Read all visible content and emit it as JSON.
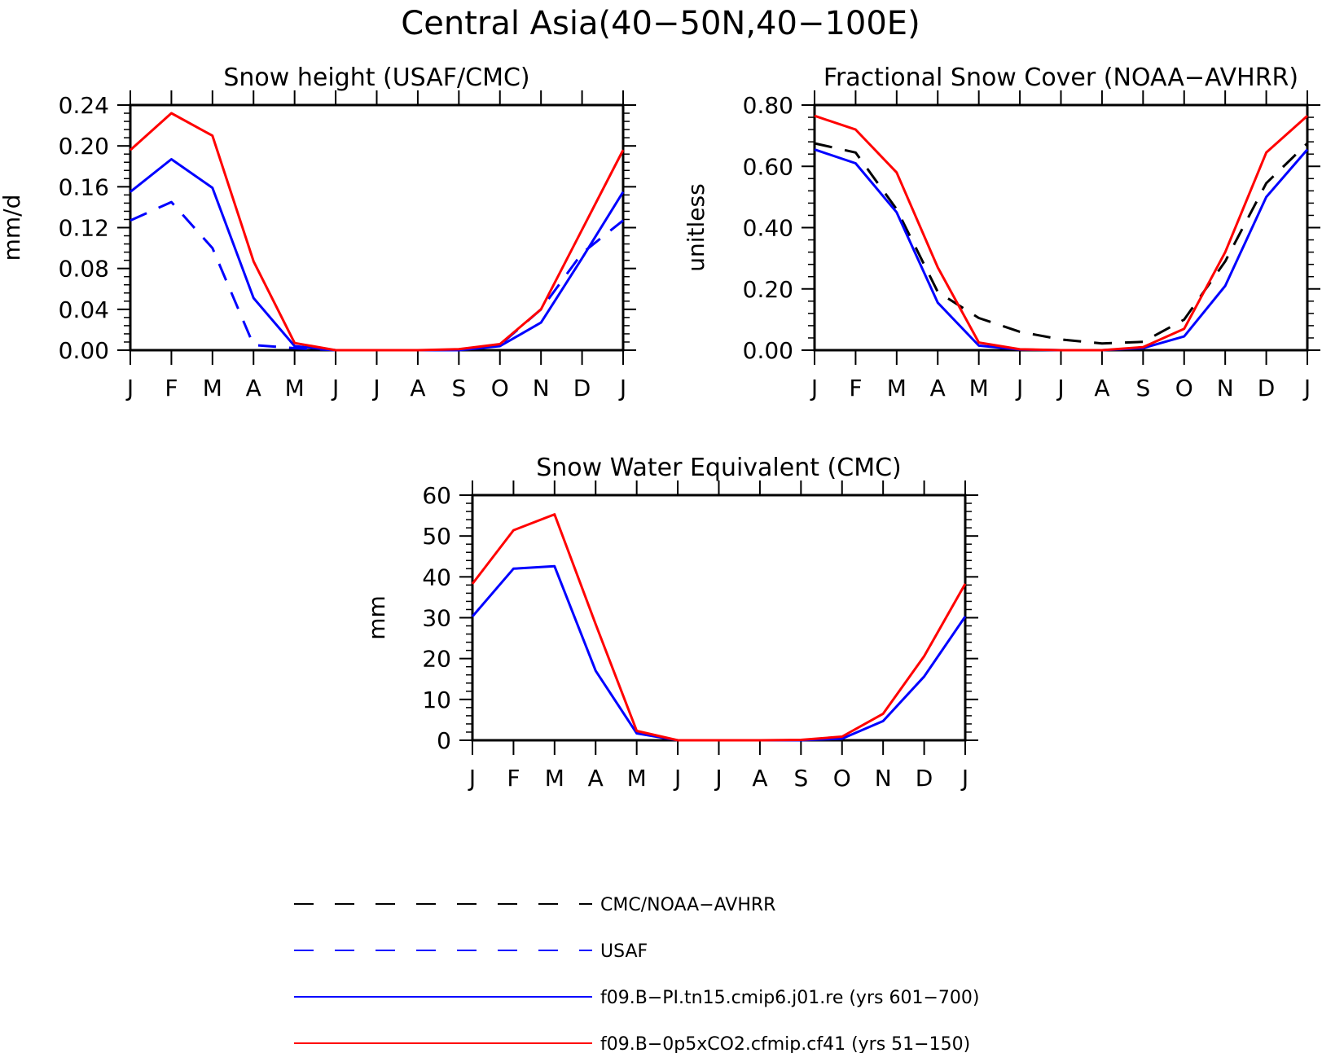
{
  "figure": {
    "title": "Central Asia(40−50N,40−100E)"
  },
  "chart_data": [
    {
      "type": "line",
      "title": "Snow height (USAF/CMC)",
      "xlabel": "",
      "ylabel": "mm/d",
      "ylim": [
        0,
        0.24
      ],
      "yticks": [
        "0.00",
        "0.04",
        "0.08",
        "0.12",
        "0.16",
        "0.20",
        "0.24"
      ],
      "categories": [
        "J",
        "F",
        "M",
        "A",
        "M",
        "J",
        "J",
        "A",
        "S",
        "O",
        "N",
        "D",
        "J"
      ],
      "series": [
        {
          "name": "USAF",
          "color": "#0000ff",
          "dash": "dashed",
          "values": [
            0.127,
            0.145,
            0.1,
            0.005,
            0.002,
            0.0,
            0.0,
            0.0,
            0.0,
            0.005,
            0.04,
            0.095,
            0.127
          ]
        },
        {
          "name": "f09.B−PI.tn15.cmip6.j01.re (yrs 601−700)",
          "color": "#0000ff",
          "dash": "solid",
          "values": [
            0.155,
            0.187,
            0.159,
            0.051,
            0.004,
            0.0,
            0.0,
            0.0,
            0.0,
            0.004,
            0.027,
            0.09,
            0.155
          ]
        },
        {
          "name": "f09.B−0p5xCO2.cfmip.cf41 (yrs 51−150)",
          "color": "#ff0000",
          "dash": "solid",
          "values": [
            0.196,
            0.232,
            0.21,
            0.087,
            0.007,
            0.0,
            0.0,
            0.0,
            0.001,
            0.006,
            0.04,
            0.118,
            0.196
          ]
        }
      ]
    },
    {
      "type": "line",
      "title": "Fractional Snow Cover (NOAA−AVHRR)",
      "xlabel": "",
      "ylabel": "unitless",
      "ylim": [
        0,
        0.8
      ],
      "yticks": [
        "0.00",
        "0.20",
        "0.40",
        "0.60",
        "0.80"
      ],
      "categories": [
        "J",
        "F",
        "M",
        "A",
        "M",
        "J",
        "J",
        "A",
        "S",
        "O",
        "N",
        "D",
        "J"
      ],
      "series": [
        {
          "name": "CMC/NOAA−AVHRR",
          "color": "#000000",
          "dash": "dashed",
          "values": [
            0.675,
            0.645,
            0.46,
            0.19,
            0.105,
            0.06,
            0.035,
            0.022,
            0.027,
            0.1,
            0.29,
            0.545,
            0.675
          ]
        },
        {
          "name": "f09.B−PI.tn15.cmip6.j01.re (yrs 601−700)",
          "color": "#0000ff",
          "dash": "solid",
          "values": [
            0.655,
            0.61,
            0.45,
            0.155,
            0.015,
            0.002,
            0.0,
            0.0,
            0.007,
            0.045,
            0.21,
            0.5,
            0.655
          ]
        },
        {
          "name": "f09.B−0p5xCO2.cfmip.cf41 (yrs 51−150)",
          "color": "#ff0000",
          "dash": "solid",
          "values": [
            0.765,
            0.72,
            0.58,
            0.27,
            0.025,
            0.003,
            0.0,
            0.0,
            0.01,
            0.07,
            0.32,
            0.645,
            0.765
          ]
        }
      ]
    },
    {
      "type": "line",
      "title": "Snow Water Equivalent (CMC)",
      "xlabel": "",
      "ylabel": "mm",
      "ylim": [
        0,
        60
      ],
      "yticks": [
        "0",
        "10",
        "20",
        "30",
        "40",
        "50",
        "60"
      ],
      "categories": [
        "J",
        "F",
        "M",
        "A",
        "M",
        "J",
        "J",
        "A",
        "S",
        "O",
        "N",
        "D",
        "J"
      ],
      "series": [
        {
          "name": "f09.B−PI.tn15.cmip6.j01.re (yrs 601−700)",
          "color": "#0000ff",
          "dash": "solid",
          "values": [
            30.3,
            42.0,
            42.6,
            17.0,
            1.7,
            0.0,
            0.0,
            0.0,
            0.0,
            0.4,
            4.7,
            15.6,
            30.3
          ]
        },
        {
          "name": "f09.B−0p5xCO2.cfmip.cf41 (yrs 51−150)",
          "color": "#ff0000",
          "dash": "solid",
          "values": [
            38.3,
            51.4,
            55.3,
            28.4,
            2.3,
            0.0,
            0.0,
            0.0,
            0.1,
            0.9,
            6.5,
            20.6,
            38.3
          ]
        }
      ]
    }
  ],
  "legend": {
    "position": "bottom",
    "entries": [
      {
        "label": "CMC/NOAA−AVHRR",
        "color": "#000000",
        "dash": "dashed"
      },
      {
        "label": "USAF",
        "color": "#0000ff",
        "dash": "dashed"
      },
      {
        "label": "f09.B−PI.tn15.cmip6.j01.re (yrs 601−700)",
        "color": "#0000ff",
        "dash": "solid"
      },
      {
        "label": "f09.B−0p5xCO2.cfmip.cf41 (yrs 51−150)",
        "color": "#ff0000",
        "dash": "solid"
      }
    ]
  }
}
